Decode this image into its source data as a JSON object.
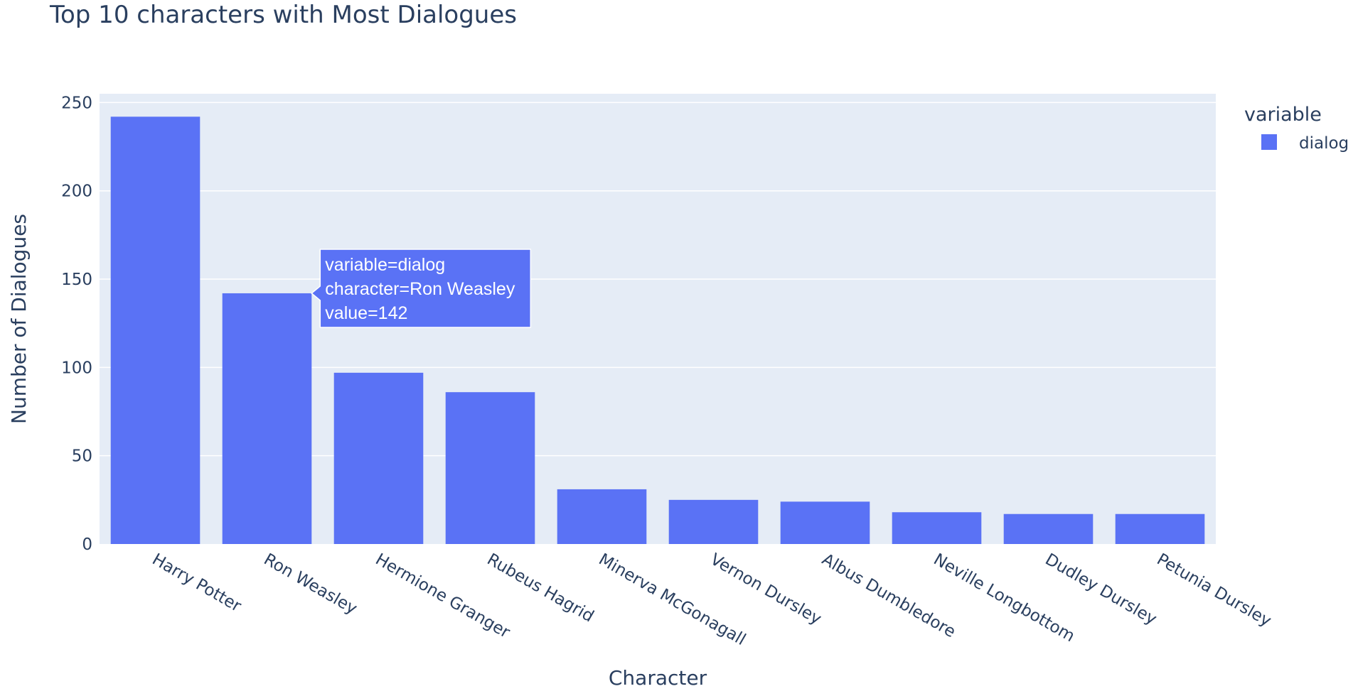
{
  "chart_data": {
    "type": "bar",
    "title": "Top 10 characters with Most Dialogues",
    "xlabel": "Character",
    "ylabel": "Number of Dialogues",
    "categories": [
      "Harry Potter",
      "Ron Weasley",
      "Hermione Granger",
      "Rubeus Hagrid",
      "Minerva McGonagall",
      "Vernon Dursley",
      "Albus Dumbledore",
      "Neville Longbottom",
      "Dudley Dursley",
      "Petunia Dursley"
    ],
    "series": [
      {
        "name": "dialog",
        "values": [
          242,
          142,
          97,
          86,
          31,
          25,
          24,
          18,
          17,
          17
        ]
      }
    ],
    "ylim": [
      0,
      255
    ],
    "yticks": [
      0,
      50,
      100,
      150,
      200,
      250
    ],
    "grid": true,
    "legend": {
      "title": "variable",
      "placement": "top-right"
    },
    "colors": {
      "bar": "#5a72f5",
      "plot_bg": "#e5ecf6",
      "grid": "#ffffff",
      "text": "#2a3f5f"
    },
    "hover": {
      "category_index": 1,
      "lines": [
        "variable=dialog",
        "character=Ron Weasley",
        "value=142"
      ]
    }
  }
}
